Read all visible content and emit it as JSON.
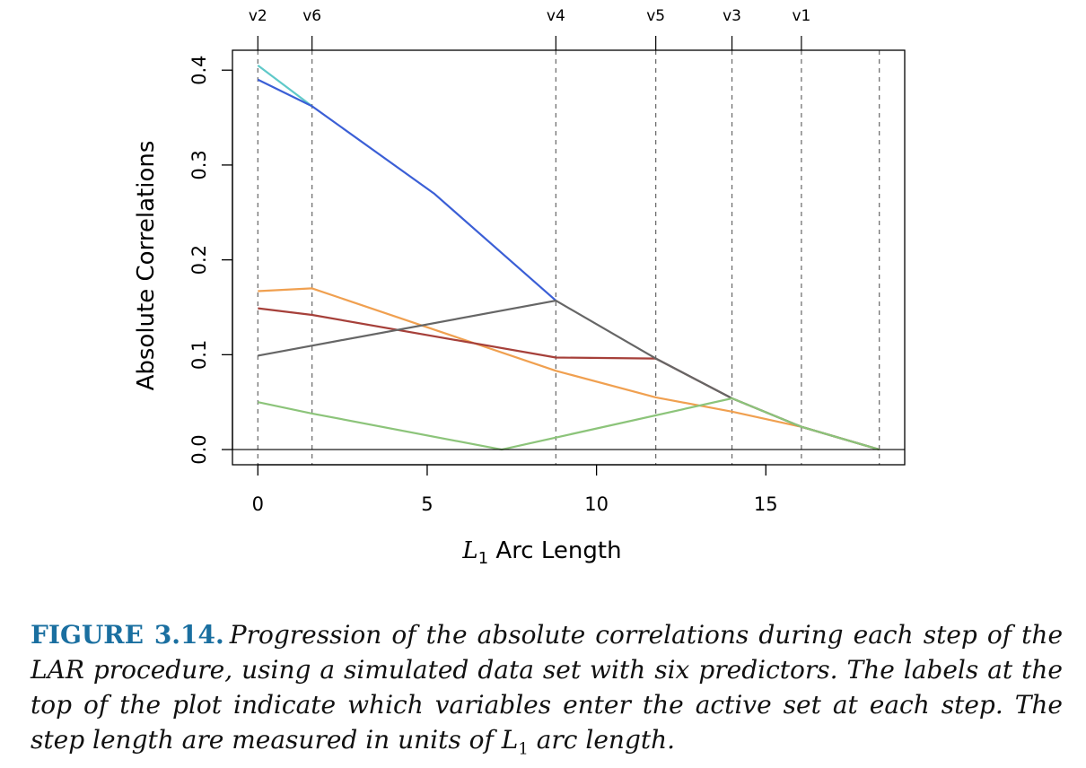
{
  "chart_data": {
    "type": "line",
    "xlabel_main": "L",
    "xlabel_sub": "1",
    "xlabel_rest": " Arc Length",
    "ylabel": "Absolute Correlations",
    "xlim": [
      -0.75,
      19.1
    ],
    "ylim": [
      -0.016,
      0.421
    ],
    "x_ticks": [
      0,
      5,
      10,
      15
    ],
    "y_ticks": [
      0.0,
      0.1,
      0.2,
      0.3,
      0.4
    ],
    "y_tick_labels": [
      "0.0",
      "0.1",
      "0.2",
      "0.3",
      "0.4"
    ],
    "grid": false,
    "legend": "none",
    "step_markers": [
      {
        "label": "v2",
        "x": 0.0
      },
      {
        "label": "v6",
        "x": 1.6
      },
      {
        "label": "v4",
        "x": 8.8
      },
      {
        "label": "v5",
        "x": 11.75
      },
      {
        "label": "v3",
        "x": 14.0
      },
      {
        "label": "v1",
        "x": 16.05
      },
      {
        "label": "",
        "x": 18.35
      }
    ],
    "series": [
      {
        "color": "#5fc9c9",
        "points": [
          [
            0.0,
            0.405
          ],
          [
            1.6,
            0.362
          ]
        ]
      },
      {
        "color": "#3b5fd6",
        "points": [
          [
            0.0,
            0.39
          ],
          [
            1.6,
            0.362
          ],
          [
            5.2,
            0.27
          ],
          [
            8.8,
            0.157
          ]
        ]
      },
      {
        "color": "#f0a050",
        "points": [
          [
            0.0,
            0.167
          ],
          [
            1.6,
            0.17
          ],
          [
            8.8,
            0.083
          ],
          [
            11.75,
            0.055
          ],
          [
            14.0,
            0.04
          ],
          [
            16.05,
            0.024
          ],
          [
            18.35,
            0.0
          ]
        ]
      },
      {
        "color": "#a6403a",
        "points": [
          [
            0.0,
            0.149
          ],
          [
            1.6,
            0.142
          ],
          [
            8.8,
            0.097
          ],
          [
            11.75,
            0.096
          ],
          [
            14.0,
            0.054
          ],
          [
            16.05,
            0.024
          ],
          [
            18.35,
            0.0
          ]
        ]
      },
      {
        "color": "#666666",
        "points": [
          [
            0.0,
            0.099
          ],
          [
            8.8,
            0.157
          ],
          [
            11.75,
            0.096
          ],
          [
            14.0,
            0.054
          ],
          [
            16.05,
            0.024
          ],
          [
            18.35,
            0.0
          ]
        ]
      },
      {
        "color": "#8cc47a",
        "points": [
          [
            0.0,
            0.05
          ],
          [
            1.6,
            0.038
          ],
          [
            7.2,
            0.0
          ],
          [
            14.0,
            0.054
          ],
          [
            16.05,
            0.024
          ],
          [
            18.35,
            0.0
          ]
        ]
      }
    ]
  },
  "caption": {
    "label": "FIGURE 3.14.",
    "text_part1": "Progression of the absolute correlations during each step of the LAR procedure, using a simulated data set with six predictors. The labels at the top of the plot indicate which variables enter the active set at each step. The step length are measured in units of ",
    "text_L": "L",
    "text_sub": "1",
    "text_part2": " arc length."
  }
}
